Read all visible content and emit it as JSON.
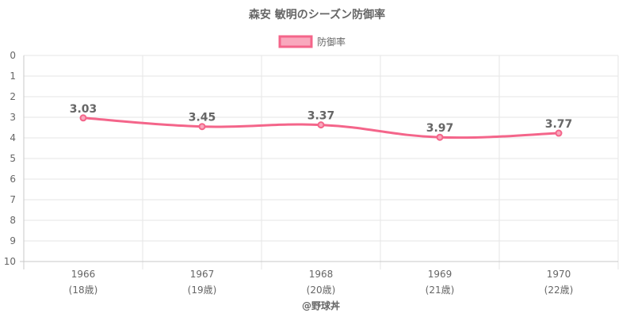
{
  "chart_data": {
    "type": "line",
    "title": "森安 敏明のシーズン防御率",
    "categories": [
      "1966",
      "1967",
      "1968",
      "1969",
      "1970"
    ],
    "category_sublabels": [
      "(18歳)",
      "(19歳)",
      "(20歳)",
      "(21歳)",
      "(22歳)"
    ],
    "series": [
      {
        "name": "防御率",
        "values": [
          3.03,
          3.45,
          3.37,
          3.97,
          3.77
        ]
      }
    ],
    "value_labels": [
      "3.03",
      "3.45",
      "3.37",
      "3.97",
      "3.77"
    ],
    "ylim": [
      0,
      10
    ],
    "y_reversed": true,
    "y_ticks": [
      0,
      1,
      2,
      3,
      4,
      5,
      6,
      7,
      8,
      9,
      10
    ],
    "grid": true,
    "legend_position": "top-center",
    "colors": {
      "line": "#f4658a",
      "legend_fill": "#f9a8bd",
      "point": "#f4658a"
    }
  },
  "credit": "@野球丼"
}
